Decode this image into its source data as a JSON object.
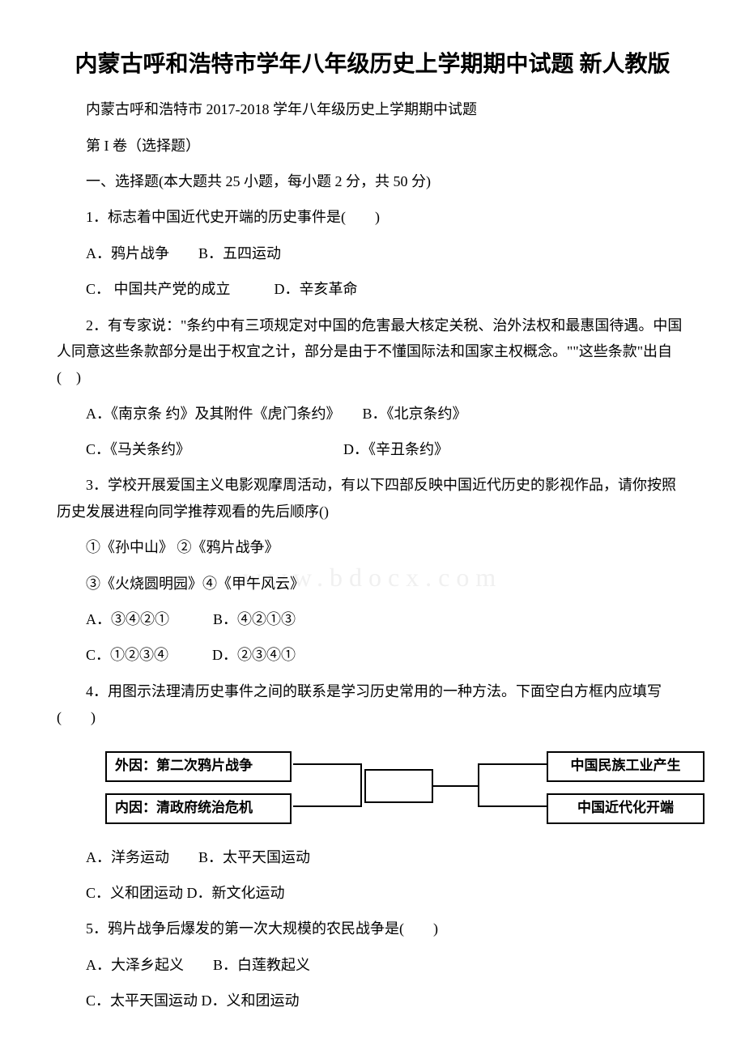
{
  "title": "内蒙古呼和浩特市学年八年级历史上学期期中试题 新人教版",
  "subtitle": "内蒙古呼和浩特市 2017-2018 学年八年级历史上学期期中试题",
  "section_label": "第 I 卷（选择题）",
  "section_desc": "一、选择题(本大题共 25 小题，每小题 2 分，共 50 分)",
  "q1": {
    "stem": "1．标志着中国近代史开端的历史事件是(　　)",
    "line1": "A．鸦片战争　　B．五四运动",
    "line2": "C．  中国共产党的成立　　　D．辛亥革命"
  },
  "q2": {
    "stem": "2．有专家说：\"条约中有三项规定对中国的危害最大核定关税、治外法权和最惠国待遇。中国人同意这些条款部分是出于权宜之计，部分是由于不懂国际法和国家主权概念。\"\"这些条款\"出自(　)",
    "line1": "A．《南京条 约》及其附件《虎门条约》　　B．《北京条约》",
    "line2": "C．《马关条约》　　　　　　　　　　　D．《辛丑条约》"
  },
  "q3": {
    "stem": "3．学校开展爱国主义电影观摩周活动，有以下四部反映中国近代历史的影视作品，请你按照历史发展进程向同学推荐观看的先后顺序()",
    "opt1": "①《孙中山》  ②《鸦片战争》",
    "opt2": "③《火烧圆明园》④《甲午风云》",
    "line1": "A．③④②①　　　B．④②①③",
    "line2": "C．①②③④　　　D．②③④①"
  },
  "q4": {
    "stem": "4．用图示法理清历史事件之间的联系是学习历史常用的一种方法。下面空白方框内应填写(　　)",
    "line1": "A．洋务运动　　B．太平天国运动",
    "line2": " C．义和团运动   D．新文化运动"
  },
  "q5": {
    "stem": "5．鸦片战争后爆发的第一次大规模的农民战争是(　　)",
    "line1": "A．大泽乡起义　　B．白莲教起义",
    "line2": "C．太平天国运动   D．义和团运动"
  },
  "diagram": {
    "left_top": "外因：第二次鸦片战争",
    "left_bottom": "内因：清政府统治危机",
    "right_top": "中国民族工业产生",
    "right_bottom": "中国近代化开端",
    "border_color": "#000000",
    "background_color": "#ffffff"
  },
  "watermark": "www.bdocx.com",
  "colors": {
    "text": "#000000",
    "background": "#ffffff",
    "watermark": "#f0f0f0"
  },
  "typography": {
    "body_fontsize": 18,
    "title_fontsize": 28,
    "font_family": "SimSun"
  }
}
